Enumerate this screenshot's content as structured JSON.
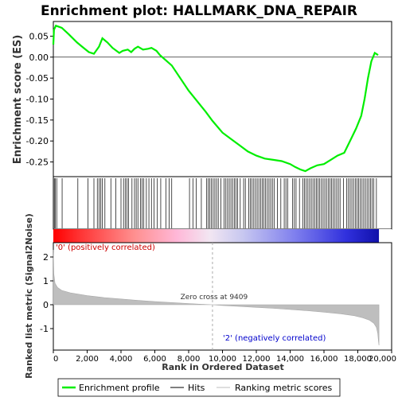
{
  "chart_data": {
    "type": "line",
    "title": "Enrichment plot: HALLMARK_DNA_REPAIR",
    "xlabel": "Rank in Ordered Dataset",
    "ylabel_top": "Enrichment score (ES)",
    "ylabel_bottom": "Ranked list metric (Signal2Noise)",
    "x_range": [
      0,
      20000
    ],
    "x_ticks": [
      0,
      2000,
      4000,
      6000,
      8000,
      10000,
      12000,
      14000,
      16000,
      18000,
      20000
    ],
    "x_tick_labels": [
      "0",
      "2,000",
      "4,000",
      "6,000",
      "8,000",
      "10,000",
      "12,000",
      "14,000",
      "16,000",
      "18,000",
      "20,000"
    ],
    "es_ylim": [
      -0.285,
      0.085
    ],
    "es_ticks": [
      0.05,
      0.0,
      -0.05,
      -0.1,
      -0.15,
      -0.2,
      -0.25
    ],
    "es_tick_labels": [
      "0.05",
      "0.00",
      "-0.05",
      "-0.10",
      "-0.15",
      "-0.20",
      "-0.25"
    ],
    "metric_ylim": [
      -1.9,
      2.6
    ],
    "metric_ticks": [
      2,
      1,
      0,
      -1
    ],
    "metric_tick_labels": [
      "2",
      "1",
      "0",
      "-1"
    ],
    "grid": false,
    "zero_cross_label": "Zero cross at 9409",
    "zero_cross": 9409,
    "pos_label": "'0' (positively correlated)",
    "neg_label": "'2' (negatively correlated)",
    "n_genes": 19250,
    "enrichment_profile": {
      "name": "Enrichment profile",
      "color": "#00ee00",
      "x": [
        0,
        40,
        150,
        500,
        900,
        1400,
        1700,
        2100,
        2400,
        2700,
        2900,
        3200,
        3500,
        3900,
        4100,
        4400,
        4600,
        4800,
        5000,
        5300,
        5600,
        5800,
        6100,
        6300,
        7000,
        8000,
        9000,
        9409,
        10000,
        10500,
        11000,
        11500,
        12000,
        12500,
        13000,
        13500,
        14000,
        14300,
        14600,
        14900,
        15200,
        15600,
        16000,
        16400,
        16800,
        17200,
        17600,
        17900,
        18200,
        18400,
        18600,
        18800,
        19000,
        19200
      ],
      "y": [
        0.03,
        0.065,
        0.075,
        0.07,
        0.055,
        0.035,
        0.025,
        0.012,
        0.008,
        0.025,
        0.045,
        0.035,
        0.022,
        0.01,
        0.015,
        0.018,
        0.012,
        0.02,
        0.025,
        0.018,
        0.02,
        0.022,
        0.015,
        0.005,
        -0.02,
        -0.08,
        -0.13,
        -0.152,
        -0.18,
        -0.195,
        -0.21,
        -0.225,
        -0.235,
        -0.242,
        -0.245,
        -0.248,
        -0.255,
        -0.262,
        -0.268,
        -0.272,
        -0.265,
        -0.258,
        -0.255,
        -0.245,
        -0.235,
        -0.228,
        -0.195,
        -0.17,
        -0.14,
        -0.1,
        -0.05,
        -0.01,
        0.01,
        0.005
      ]
    },
    "hits": {
      "name": "Hits",
      "color": "#000000",
      "positions": [
        60,
        120,
        200,
        520,
        1450,
        2050,
        2400,
        2600,
        2700,
        2800,
        2900,
        3050,
        3400,
        3700,
        4000,
        4150,
        4250,
        4350,
        4450,
        4650,
        4800,
        4900,
        5000,
        5150,
        5250,
        5350,
        5500,
        5650,
        5800,
        5950,
        6150,
        6350,
        6650,
        6850,
        7000,
        8050,
        8250,
        8450,
        8750,
        9050,
        9150,
        9250,
        9350,
        9450,
        9550,
        9650,
        9750,
        9900,
        10100,
        10200,
        10300,
        10400,
        10500,
        10600,
        10700,
        10800,
        10900,
        11050,
        11250,
        11350,
        11550,
        11650,
        11750,
        11850,
        11950,
        12050,
        12150,
        12250,
        12350,
        12450,
        12550,
        12650,
        12750,
        12850,
        12950,
        13050,
        13250,
        13450,
        13650,
        13750,
        13850,
        14150,
        14250,
        14350,
        14550,
        14750,
        14850,
        14950,
        15050,
        15150,
        15250,
        15350,
        15450,
        15550,
        15650,
        15750,
        15850,
        15950,
        16050,
        16150,
        16250,
        16350,
        16450,
        16550,
        16650,
        16750,
        16850,
        16950,
        17150,
        17350,
        17450,
        17550,
        17650,
        17750,
        17850,
        17950,
        18050,
        18150,
        18250,
        18350,
        18450,
        18550,
        18650,
        18750,
        18850,
        18950,
        19100
      ]
    },
    "ranking_metric": {
      "name": "Ranking metric scores",
      "color": "#bebebe",
      "x": [
        0,
        30,
        100,
        250,
        500,
        1000,
        2000,
        3000,
        4000,
        5000,
        6000,
        7000,
        8000,
        9000,
        9409,
        10000,
        11000,
        12000,
        13000,
        14000,
        15000,
        16000,
        17000,
        17800,
        18300,
        18700,
        18950,
        19100,
        19180,
        19220,
        19250
      ],
      "y": [
        2.3,
        1.3,
        0.9,
        0.72,
        0.6,
        0.5,
        0.38,
        0.3,
        0.24,
        0.18,
        0.13,
        0.09,
        0.05,
        0.01,
        0.0,
        -0.03,
        -0.07,
        -0.11,
        -0.15,
        -0.2,
        -0.25,
        -0.31,
        -0.38,
        -0.46,
        -0.55,
        -0.65,
        -0.78,
        -0.95,
        -1.2,
        -1.5,
        -1.7
      ]
    }
  },
  "legend": {
    "items": [
      {
        "label": "Enrichment profile",
        "color": "#00ee00"
      },
      {
        "label": "Hits",
        "color": "#000000"
      },
      {
        "label": "Ranking metric scores",
        "color": "#bebebe"
      }
    ]
  },
  "colors": {
    "pos_text": "#cc0000",
    "neg_text": "#0000cc",
    "heat_pos": "#ff0000",
    "heat_mid": "#ffffff",
    "heat_neg": "#0000cc"
  }
}
